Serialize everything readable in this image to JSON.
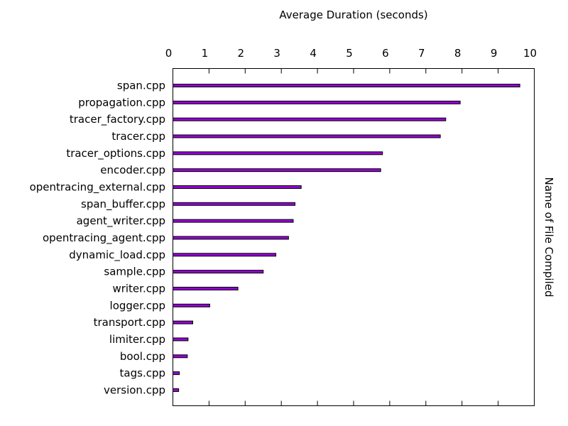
{
  "chart_data": {
    "type": "bar",
    "orientation": "horizontal",
    "title": "",
    "xlabel": "Average Duration (seconds)",
    "ylabel": "Name of File Compiled",
    "xlim": [
      0,
      10
    ],
    "x_ticks": [
      0,
      1,
      2,
      3,
      4,
      5,
      6,
      7,
      8,
      9,
      10
    ],
    "x_axis_position": "top",
    "y_label_position": "right",
    "grid": false,
    "legend": "none",
    "bar_fill_color": "#9400d3",
    "bar_edge_color": "#000000",
    "categories": [
      "span.cpp",
      "propagation.cpp",
      "tracer_factory.cpp",
      "tracer.cpp",
      "tracer_options.cpp",
      "encoder.cpp",
      "opentracing_external.cpp",
      "span_buffer.cpp",
      "agent_writer.cpp",
      "opentracing_agent.cpp",
      "dynamic_load.cpp",
      "sample.cpp",
      "writer.cpp",
      "logger.cpp",
      "transport.cpp",
      "limiter.cpp",
      "bool.cpp",
      "tags.cpp",
      "version.cpp"
    ],
    "values": [
      9.6,
      7.95,
      7.55,
      7.4,
      5.8,
      5.75,
      3.55,
      3.38,
      3.33,
      3.2,
      2.85,
      2.5,
      1.8,
      1.02,
      0.55,
      0.42,
      0.4,
      0.18,
      0.16
    ]
  }
}
